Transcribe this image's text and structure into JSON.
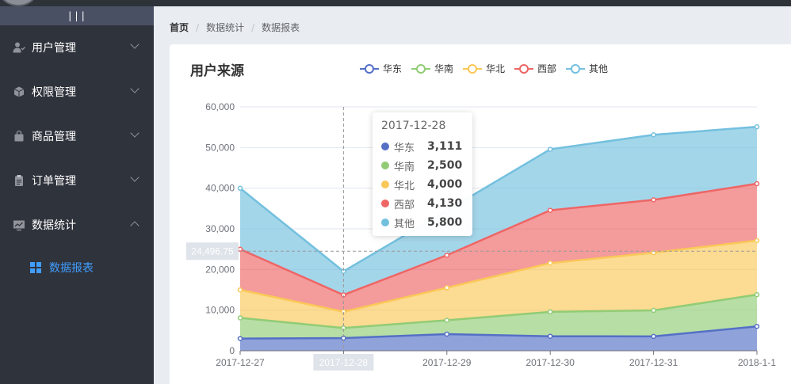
{
  "sidebar": {
    "toggle_label": "|||",
    "items": [
      {
        "label": "用户管理",
        "icon": "user-icon"
      },
      {
        "label": "权限管理",
        "icon": "box-icon"
      },
      {
        "label": "商品管理",
        "icon": "bag-icon"
      },
      {
        "label": "订单管理",
        "icon": "clipboard-icon"
      },
      {
        "label": "数据统计",
        "icon": "chart-icon"
      }
    ],
    "subitem": {
      "label": "数据报表",
      "icon": "grid-icon"
    },
    "active_color": "#409eff"
  },
  "breadcrumb": [
    "首页",
    "数据统计",
    "数据报表"
  ],
  "chart_data": {
    "type": "area",
    "title": "用户来源",
    "stacked": true,
    "categories": [
      "2017-12-27",
      "2017-12-28",
      "2017-12-29",
      "2017-12-30",
      "2017-12-31",
      "2018-1-1"
    ],
    "series": [
      {
        "name": "华东",
        "color": "#5470c6",
        "values": [
          2999,
          3111,
          4100,
          3565,
          3528,
          6000
        ]
      },
      {
        "name": "华南",
        "color": "#91cc75",
        "values": [
          5090,
          2500,
          3400,
          6000,
          6400,
          7800
        ]
      },
      {
        "name": "华北",
        "color": "#fac858",
        "values": [
          6888,
          4000,
          8000,
          12000,
          14200,
          13300
        ]
      },
      {
        "name": "西部",
        "color": "#ee6666",
        "values": [
          10000,
          4130,
          8000,
          13000,
          13000,
          14000
        ]
      },
      {
        "name": "其他",
        "color": "#73c0de",
        "values": [
          15000,
          5800,
          11000,
          15000,
          16000,
          14000
        ]
      }
    ],
    "ylim": [
      0,
      60000
    ],
    "yticks": [
      "0",
      "10,000",
      "20,000",
      "30,000",
      "40,000",
      "50,000",
      "60,000"
    ],
    "xlabel": "",
    "ylabel": "",
    "legend_position": "top",
    "grid": true,
    "pointer": {
      "category": "2017-12-28",
      "y_value_label": "24,496.75",
      "y_value": 24496.75
    },
    "tooltip": {
      "title": "2017-12-28",
      "rows": [
        {
          "name": "华东",
          "value": "3,111"
        },
        {
          "name": "华南",
          "value": "2,500"
        },
        {
          "name": "华北",
          "value": "4,000"
        },
        {
          "name": "西部",
          "value": "4,130"
        },
        {
          "name": "其他",
          "value": "5,800"
        }
      ]
    }
  }
}
